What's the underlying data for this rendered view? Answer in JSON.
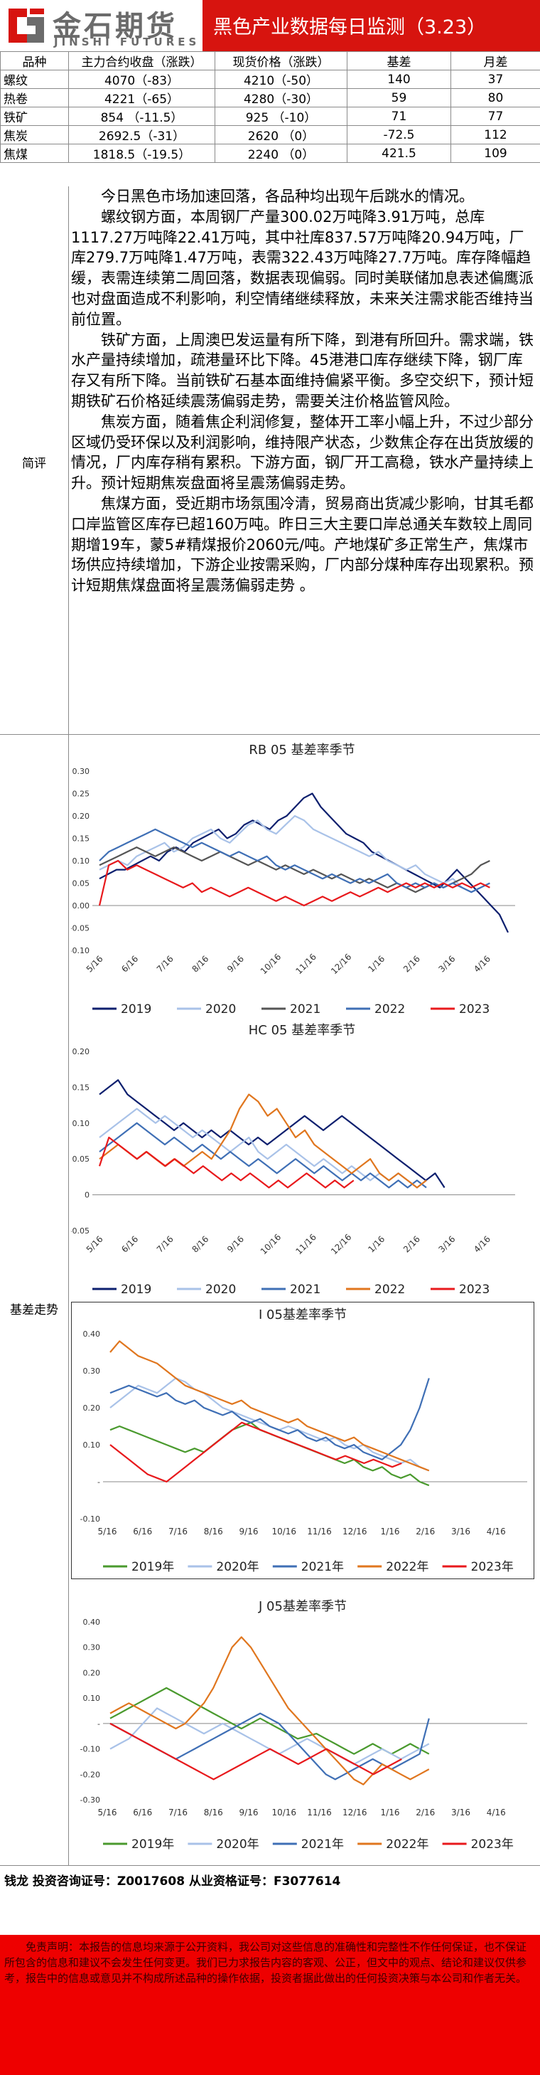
{
  "header": {
    "brand_cn": "金石期货",
    "brand_en": "JINSHI FUTURES",
    "title": "黑色产业数据每日监测（3.23）",
    "colors": {
      "header_bg": "#d7140f",
      "title_text": "#ffffff",
      "logo_text": "#6b6b6b"
    }
  },
  "price_table": {
    "columns": [
      "品种",
      "主力合约收盘（涨跌）",
      "现货价格（涨跌）",
      "基差",
      "月差"
    ],
    "rows": [
      {
        "name": "螺纹",
        "main": "4070（-83）",
        "spot": "4210（-50）",
        "basis": "140",
        "spread": "37"
      },
      {
        "name": "热卷",
        "main": "4221（-65）",
        "spot": "4280（-30）",
        "basis": "59",
        "spread": "80"
      },
      {
        "name": "铁矿",
        "main": "854 （-11.5）",
        "spot": "925 （-10）",
        "basis": "71",
        "spread": "77"
      },
      {
        "name": "焦炭",
        "main": "2692.5（-31）",
        "spot": "2620 （0）",
        "basis": "-72.5",
        "spread": "112"
      },
      {
        "name": "焦煤",
        "main": "1818.5（-19.5）",
        "spot": "2240 （0）",
        "basis": "421.5",
        "spread": "109"
      }
    ]
  },
  "summary": {
    "label": "简评",
    "paragraphs": [
      "今日黑色市场加速回落，各品种均出现午后跳水的情况。",
      "螺纹钢方面，本周钢厂产量300.02万吨降3.91万吨，总库1117.27万吨降22.41万吨，其中社库837.57万吨降20.94万吨，厂库279.7万吨降1.47万吨，表需322.43万吨降27.7万吨。库存降幅趋缓，表需连续第二周回落，数据表现偏弱。同时美联储加息表述偏鹰派也对盘面造成不利影响，利空情绪继续释放，未来关注需求能否维持当前位置。",
      "铁矿方面，上周澳巴发运量有所下降，到港有所回升。需求端，铁水产量持续增加，疏港量环比下降。45港港口库存继续下降，钢厂库存又有所下降。当前铁矿石基本面维持偏紧平衡。多空交织下，预计短期铁矿石价格延续震荡偏弱走势，需要关注价格监管风险。",
      "焦炭方面，随着焦企利润修复，整体开工率小幅上升，不过少部分区域仍受环保以及利润影响，维持限产状态，少数焦企存在出货放缓的情况，厂内库存稍有累积。下游方面，钢厂开工高稳，铁水产量持续上升。预计短期焦炭盘面将呈震荡偏弱走势。",
      "焦煤方面，受近期市场氛围冷清，贸易商出货减少影响，甘其毛都口岸监管区库存已超160万吨。昨日三大主要口岸总通关车数较上周同期增19车，蒙5#精煤报价2060元/吨。产地煤矿多正常生产，焦煤市场供应持续增加，下游企业按需采购，厂内部分煤种库存出现累积。预计短期焦煤盘面将呈震荡偏弱走势 。"
    ]
  },
  "charts_section": {
    "label": "基差走势"
  },
  "charts": [
    {
      "id": "rb05",
      "title": "RB 05 基差率季节",
      "type": "line",
      "x_ticks": [
        "5/16",
        "6/16",
        "7/16",
        "8/16",
        "9/16",
        "10/16",
        "11/16",
        "12/16",
        "1/16",
        "2/16",
        "3/16",
        "4/16"
      ],
      "y_ticks": [
        "0.30",
        "0.25",
        "0.20",
        "0.15",
        "0.10",
        "0.05",
        "0.00",
        "-0.05",
        "-0.10"
      ],
      "ylim": [
        -0.1,
        0.3
      ],
      "legend": [
        "2019",
        "2020",
        "2021",
        "2022",
        "2023"
      ],
      "colors": [
        "#0c1f6e",
        "#a9c2e8",
        "#555555",
        "#3f6fb5",
        "#e8191c"
      ],
      "series": [
        [
          0.06,
          0.07,
          0.08,
          0.08,
          0.09,
          0.1,
          0.11,
          0.1,
          0.12,
          0.13,
          0.12,
          0.14,
          0.15,
          0.16,
          0.17,
          0.15,
          0.16,
          0.18,
          0.19,
          0.18,
          0.17,
          0.19,
          0.2,
          0.22,
          0.24,
          0.25,
          0.22,
          0.2,
          0.18,
          0.16,
          0.15,
          0.14,
          0.12,
          0.11,
          0.1,
          0.09,
          0.08,
          0.07,
          0.06,
          0.05,
          0.04,
          0.06,
          0.08,
          0.06,
          0.04,
          0.02,
          0.0,
          -0.02,
          -0.06
        ],
        [
          0.08,
          0.09,
          0.1,
          0.09,
          0.11,
          0.12,
          0.13,
          0.14,
          0.12,
          0.13,
          0.15,
          0.16,
          0.17,
          0.15,
          0.14,
          0.16,
          0.18,
          0.19,
          0.17,
          0.16,
          0.18,
          0.2,
          0.19,
          0.17,
          0.16,
          0.15,
          0.14,
          0.13,
          0.12,
          0.11,
          0.12,
          0.1,
          0.09,
          0.08,
          0.09,
          0.07,
          0.06,
          0.05,
          0.06,
          0.04,
          0.03,
          0.04
        ],
        [
          0.09,
          0.1,
          0.11,
          0.12,
          0.13,
          0.12,
          0.11,
          0.12,
          0.13,
          0.12,
          0.11,
          0.1,
          0.11,
          0.12,
          0.11,
          0.1,
          0.09,
          0.1,
          0.09,
          0.08,
          0.09,
          0.08,
          0.07,
          0.08,
          0.07,
          0.06,
          0.07,
          0.06,
          0.05,
          0.06,
          0.05,
          0.04,
          0.05,
          0.04,
          0.03,
          0.04,
          0.05,
          0.04,
          0.05,
          0.06,
          0.07,
          0.09,
          0.1
        ],
        [
          0.1,
          0.12,
          0.13,
          0.14,
          0.15,
          0.16,
          0.17,
          0.16,
          0.15,
          0.14,
          0.13,
          0.14,
          0.13,
          0.12,
          0.11,
          0.12,
          0.11,
          0.1,
          0.11,
          0.09,
          0.08,
          0.09,
          0.08,
          0.07,
          0.06,
          0.07,
          0.06,
          0.05,
          0.06,
          0.05,
          0.06,
          0.07,
          0.05,
          0.04,
          0.05,
          0.04,
          0.05,
          0.04,
          0.05,
          0.04,
          0.03,
          0.04,
          0.05
        ],
        [
          0.0,
          0.09,
          0.1,
          0.08,
          0.09,
          0.08,
          0.07,
          0.06,
          0.05,
          0.04,
          0.05,
          0.03,
          0.04,
          0.03,
          0.02,
          0.03,
          0.04,
          0.03,
          0.02,
          0.01,
          0.02,
          0.01,
          0.0,
          0.01,
          0.02,
          0.01,
          0.02,
          0.03,
          0.02,
          0.03,
          0.04,
          0.03,
          0.04,
          0.05,
          0.04,
          0.05,
          0.04,
          0.05,
          0.04,
          0.05,
          0.04,
          0.05,
          0.04
        ]
      ]
    },
    {
      "id": "hc05",
      "title": "HC 05 基差率季节",
      "type": "line",
      "x_ticks": [
        "5/16",
        "6/16",
        "7/16",
        "8/16",
        "9/16",
        "10/16",
        "11/16",
        "12/16",
        "1/16",
        "2/16",
        "3/16",
        "4/16"
      ],
      "y_ticks": [
        "0.20",
        "0.15",
        "0.10",
        "0.05",
        "0",
        "-0.05"
      ],
      "ylim": [
        -0.05,
        0.2
      ],
      "legend": [
        "2019",
        "2020",
        "2021",
        "2022",
        "2023"
      ],
      "colors": [
        "#0c1f6e",
        "#a9c2e8",
        "#3f6fb5",
        "#e0761e",
        "#e8191c"
      ],
      "series": [
        [
          0.14,
          0.15,
          0.16,
          0.14,
          0.13,
          0.12,
          0.11,
          0.1,
          0.09,
          0.1,
          0.09,
          0.08,
          0.09,
          0.08,
          0.09,
          0.08,
          0.07,
          0.08,
          0.07,
          0.08,
          0.09,
          0.1,
          0.11,
          0.1,
          0.09,
          0.1,
          0.11,
          0.1,
          0.09,
          0.08,
          0.07,
          0.06,
          0.05,
          0.04,
          0.03,
          0.02,
          0.03,
          0.01
        ],
        [
          0.08,
          0.09,
          0.1,
          0.11,
          0.12,
          0.11,
          0.1,
          0.11,
          0.1,
          0.09,
          0.08,
          0.09,
          0.08,
          0.07,
          0.06,
          0.07,
          0.08,
          0.06,
          0.05,
          0.06,
          0.07,
          0.06,
          0.05,
          0.04,
          0.05,
          0.04,
          0.03,
          0.04,
          0.03,
          0.02,
          0.03,
          0.02,
          0.03,
          0.02,
          0.01,
          0.02
        ],
        [
          0.06,
          0.07,
          0.08,
          0.09,
          0.1,
          0.09,
          0.08,
          0.07,
          0.08,
          0.07,
          0.06,
          0.07,
          0.06,
          0.05,
          0.06,
          0.05,
          0.04,
          0.05,
          0.04,
          0.03,
          0.04,
          0.05,
          0.04,
          0.03,
          0.04,
          0.03,
          0.02,
          0.03,
          0.02,
          0.03,
          0.02,
          0.01,
          0.02,
          0.01,
          0.02,
          0.01
        ],
        [
          0.05,
          0.06,
          0.07,
          0.06,
          0.05,
          0.06,
          0.05,
          0.04,
          0.05,
          0.04,
          0.05,
          0.06,
          0.05,
          0.07,
          0.09,
          0.12,
          0.14,
          0.13,
          0.11,
          0.12,
          0.1,
          0.08,
          0.09,
          0.07,
          0.06,
          0.05,
          0.04,
          0.03,
          0.04,
          0.05,
          0.03,
          0.02,
          0.03,
          0.02,
          0.01,
          0.02
        ],
        [
          0.04,
          0.08,
          0.07,
          0.06,
          0.05,
          0.06,
          0.05,
          0.04,
          0.05,
          0.04,
          0.03,
          0.04,
          0.03,
          0.02,
          0.03,
          0.02,
          0.03,
          0.02,
          0.01,
          0.02,
          0.01,
          0.02,
          0.03,
          0.02,
          0.01,
          0.02,
          0.01,
          0.02
        ]
      ]
    },
    {
      "id": "i05",
      "title": "I 05基差率季节",
      "type": "line",
      "x_ticks": [
        "5/16",
        "6/16",
        "7/16",
        "8/16",
        "9/16",
        "10/16",
        "11/16",
        "12/16",
        "1/16",
        "2/16",
        "3/16",
        "4/16"
      ],
      "y_ticks": [
        "0.40",
        "0.30",
        "0.20",
        "0.10",
        "-",
        "-0.10"
      ],
      "ylim": [
        -0.1,
        0.4
      ],
      "legend": [
        "2019年",
        "2020年",
        "2021年",
        "2022年",
        "2023年"
      ],
      "colors": [
        "#4a9a2e",
        "#a9c2e8",
        "#3f6fb5",
        "#e0761e",
        "#e8191c"
      ],
      "series": [
        [
          0.14,
          0.15,
          0.14,
          0.13,
          0.12,
          0.11,
          0.1,
          0.09,
          0.08,
          0.09,
          0.08,
          0.1,
          0.12,
          0.14,
          0.15,
          0.16,
          0.14,
          0.13,
          0.12,
          0.11,
          0.1,
          0.09,
          0.08,
          0.07,
          0.06,
          0.05,
          0.06,
          0.04,
          0.03,
          0.04,
          0.02,
          0.01,
          0.02,
          0.0,
          -0.01
        ],
        [
          0.2,
          0.22,
          0.24,
          0.26,
          0.25,
          0.24,
          0.26,
          0.28,
          0.27,
          0.25,
          0.24,
          0.22,
          0.2,
          0.19,
          0.18,
          0.17,
          0.16,
          0.15,
          0.14,
          0.15,
          0.14,
          0.13,
          0.12,
          0.11,
          0.12,
          0.1,
          0.09,
          0.1,
          0.08,
          0.07,
          0.06,
          0.05,
          0.06,
          0.04,
          0.03
        ],
        [
          0.24,
          0.25,
          0.26,
          0.25,
          0.24,
          0.23,
          0.24,
          0.22,
          0.21,
          0.22,
          0.2,
          0.19,
          0.18,
          0.19,
          0.17,
          0.16,
          0.17,
          0.15,
          0.14,
          0.13,
          0.14,
          0.12,
          0.11,
          0.12,
          0.1,
          0.09,
          0.1,
          0.08,
          0.07,
          0.06,
          0.08,
          0.1,
          0.14,
          0.2,
          0.28
        ],
        [
          0.35,
          0.38,
          0.36,
          0.34,
          0.33,
          0.32,
          0.3,
          0.28,
          0.26,
          0.25,
          0.24,
          0.23,
          0.22,
          0.21,
          0.22,
          0.2,
          0.19,
          0.18,
          0.17,
          0.16,
          0.17,
          0.15,
          0.14,
          0.13,
          0.12,
          0.11,
          0.12,
          0.1,
          0.09,
          0.08,
          0.07,
          0.06,
          0.05,
          0.04,
          0.03
        ],
        [
          0.1,
          0.08,
          0.06,
          0.04,
          0.02,
          0.01,
          0.0,
          0.02,
          0.04,
          0.06,
          0.08,
          0.1,
          0.12,
          0.14,
          0.16,
          0.15,
          0.14,
          0.13,
          0.12,
          0.11,
          0.1,
          0.09,
          0.08,
          0.07,
          0.06,
          0.07,
          0.06,
          0.05,
          0.06,
          0.05,
          0.04,
          0.05
        ]
      ]
    },
    {
      "id": "j05",
      "title": "J 05基差率季节",
      "type": "line",
      "x_ticks": [
        "5/16",
        "6/16",
        "7/16",
        "8/16",
        "9/16",
        "10/16",
        "11/16",
        "12/16",
        "1/16",
        "2/16",
        "3/16",
        "4/16"
      ],
      "y_ticks": [
        "0.40",
        "0.30",
        "0.20",
        "0.10",
        "-",
        "-0.10",
        "-0.20",
        "-0.30"
      ],
      "ylim": [
        -0.3,
        0.4
      ],
      "legend": [
        "2019年",
        "2020年",
        "2021年",
        "2022年",
        "2023年"
      ],
      "colors": [
        "#4a9a2e",
        "#a9c2e8",
        "#3f6fb5",
        "#e0761e",
        "#e8191c"
      ],
      "series": [
        [
          0.02,
          0.04,
          0.06,
          0.08,
          0.1,
          0.12,
          0.14,
          0.12,
          0.1,
          0.08,
          0.06,
          0.04,
          0.02,
          0.0,
          -0.02,
          0.0,
          0.02,
          0.0,
          -0.02,
          -0.04,
          -0.06,
          -0.05,
          -0.04,
          -0.06,
          -0.08,
          -0.1,
          -0.12,
          -0.1,
          -0.08,
          -0.1,
          -0.12,
          -0.1,
          -0.08,
          -0.1,
          -0.12
        ],
        [
          -0.1,
          -0.08,
          -0.06,
          -0.02,
          0.02,
          0.06,
          0.04,
          0.02,
          0.0,
          -0.02,
          -0.04,
          -0.02,
          0.0,
          -0.02,
          -0.04,
          -0.06,
          -0.08,
          -0.1,
          -0.12,
          -0.1,
          -0.08,
          -0.06,
          -0.08,
          -0.1,
          -0.12,
          -0.14,
          -0.16,
          -0.14,
          -0.12,
          -0.1,
          -0.12,
          -0.14,
          -0.12,
          -0.1,
          -0.08
        ],
        [
          0.0,
          -0.02,
          -0.04,
          -0.06,
          -0.08,
          -0.1,
          -0.12,
          -0.14,
          -0.12,
          -0.1,
          -0.08,
          -0.06,
          -0.04,
          -0.02,
          0.0,
          0.02,
          0.04,
          0.02,
          0.0,
          -0.04,
          -0.08,
          -0.12,
          -0.16,
          -0.2,
          -0.22,
          -0.2,
          -0.18,
          -0.16,
          -0.14,
          -0.16,
          -0.18,
          -0.16,
          -0.14,
          -0.12,
          0.02
        ],
        [
          0.04,
          0.06,
          0.08,
          0.06,
          0.04,
          0.02,
          0.0,
          -0.02,
          0.0,
          0.04,
          0.08,
          0.14,
          0.22,
          0.3,
          0.34,
          0.3,
          0.24,
          0.18,
          0.12,
          0.06,
          0.02,
          -0.02,
          -0.06,
          -0.1,
          -0.14,
          -0.18,
          -0.22,
          -0.24,
          -0.2,
          -0.16,
          -0.18,
          -0.2,
          -0.22,
          -0.2,
          -0.18
        ],
        [
          0.0,
          -0.02,
          -0.04,
          -0.06,
          -0.08,
          -0.1,
          -0.12,
          -0.14,
          -0.16,
          -0.18,
          -0.2,
          -0.22,
          -0.2,
          -0.18,
          -0.16,
          -0.14,
          -0.12,
          -0.1,
          -0.12,
          -0.14,
          -0.16,
          -0.14,
          -0.12,
          -0.1,
          -0.12,
          -0.14,
          -0.16,
          -0.18,
          -0.2,
          -0.18,
          -0.16,
          -0.14
        ]
      ]
    }
  ],
  "footer": {
    "signature": "钱龙 投资咨询证号：Z0017608 从业资格证号：F3077614",
    "disclaimer": "免责声明：本报告的信息均来源于公开资料，我公司对这些信息的准确性和完整性不作任何保证，也不保证所包含的信息和建议不会发生任何变更。我们已力求报告内容的客观、公正，但文中的观点、结论和建议仅供参考，报告中的信息或意见并不构成所述品种的操作依据，投资者据此做出的任何投资决策与本公司和作者无关。",
    "colors": {
      "disclaimer_bg": "#ee0000"
    }
  }
}
